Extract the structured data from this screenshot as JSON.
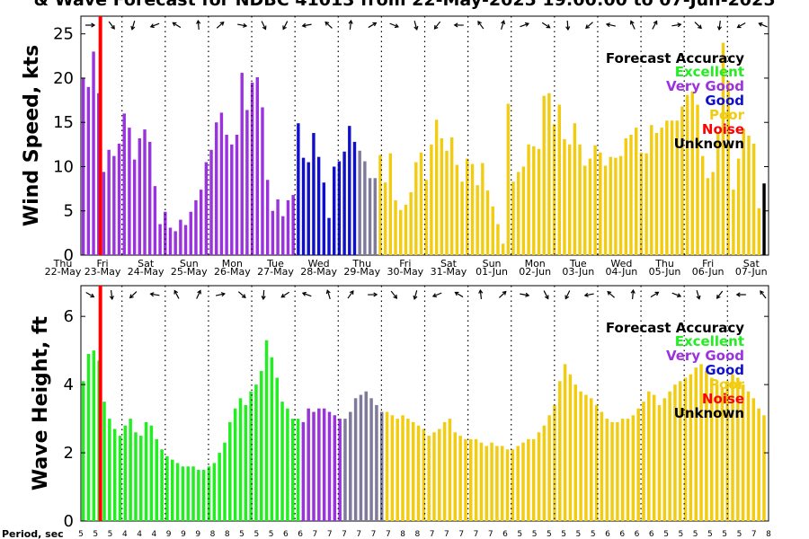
{
  "title": "& Wave Forecast for NDBC 41013 from 22-May-2025 19:00:00 to 07-Jun-2025",
  "colors": {
    "Excellent": "#22ee22",
    "Very Good": "#9a33dd",
    "Good": "#1010cc",
    "Poor": "#f2cc10",
    "Noise": "#ff0000",
    "Unknown": "#000000",
    "transition": "#807a9a"
  },
  "legend": {
    "title": "Forecast Accuracy",
    "entries": [
      "Excellent",
      "Very Good",
      "Good",
      "Poor",
      "Noise",
      "Unknown"
    ]
  },
  "day_labels": [
    {
      "dow": "Thu",
      "date": "22-May"
    },
    {
      "dow": "Fri",
      "date": "23-May"
    },
    {
      "dow": "Sat",
      "date": "24-May"
    },
    {
      "dow": "Sun",
      "date": "25-May"
    },
    {
      "dow": "Mon",
      "date": "26-May"
    },
    {
      "dow": "Tue",
      "date": "27-May"
    },
    {
      "dow": "Wed",
      "date": "28-May"
    },
    {
      "dow": "Thu",
      "date": "29-May"
    },
    {
      "dow": "Fri",
      "date": "30-May"
    },
    {
      "dow": "Sat",
      "date": "31-May"
    },
    {
      "dow": "Sun",
      "date": "01-Jun"
    },
    {
      "dow": "Mon",
      "date": "02-Jun"
    },
    {
      "dow": "Tue",
      "date": "03-Jun"
    },
    {
      "dow": "Wed",
      "date": "04-Jun"
    },
    {
      "dow": "Thu",
      "date": "05-Jun"
    },
    {
      "dow": "Fri",
      "date": "06-Jun"
    },
    {
      "dow": "Sat",
      "date": "07-Jun"
    }
  ],
  "period_label": "Period, sec",
  "periods": [
    5,
    5,
    5,
    4,
    4,
    4,
    9,
    9,
    9,
    8,
    8,
    5,
    5,
    5,
    6,
    6,
    7,
    7,
    7,
    7,
    7,
    7,
    8,
    8,
    7,
    7,
    7,
    7,
    7,
    6,
    5,
    5,
    5,
    5,
    5,
    5,
    6,
    6,
    6,
    6,
    5,
    5,
    5,
    5,
    5,
    5,
    7,
    8
  ],
  "chart_data": [
    {
      "type": "bar",
      "ylabel": "Wind Speed, kts",
      "ylim": [
        0,
        27
      ],
      "yticks": [
        0,
        5,
        10,
        15,
        20,
        25
      ],
      "xlim": [
        0,
        15.9
      ],
      "noise_line_x": 0.45,
      "values": [
        20,
        19,
        23,
        18.3,
        9.4,
        11.9,
        11.2,
        12.6,
        16,
        14.4,
        10.8,
        13.2,
        14.2,
        12.8,
        7.8,
        3.5,
        4.9,
        3.1,
        2.7,
        4,
        3.4,
        4.9,
        6.2,
        7.4,
        10.5,
        11.9,
        15,
        16.1,
        13.6,
        12.5,
        13.6,
        20.6,
        16.4,
        19.5,
        20.1,
        16.7,
        8.5,
        5,
        6.3,
        4.4,
        6.2,
        6.8,
        14.9,
        11,
        10.5,
        13.8,
        11.1,
        8.2,
        4.2,
        10,
        10.6,
        11.7,
        14.6,
        12.8,
        11.8,
        10.6,
        8.7,
        8.7,
        11.3,
        8.2,
        11.5,
        6.2,
        5.1,
        5.7,
        7.1,
        10.5,
        11.6,
        8.5,
        12.5,
        15.3,
        13.2,
        11.8,
        13.3,
        10.2,
        8.3,
        10.9,
        10.3,
        7.9,
        10.4,
        7.3,
        5.5,
        3.5,
        1.3,
        17.1,
        8.3,
        9.4,
        10,
        12.5,
        12.3,
        12,
        18,
        18.3,
        14.8,
        17,
        13.1,
        12.5,
        14.9,
        12.5,
        10.1,
        10.9,
        12.4,
        11.6,
        10.1,
        11.1,
        11,
        11.2,
        13.2,
        13.6,
        14.4,
        11.6,
        11.5,
        14.7,
        13.8,
        14.4,
        15.2,
        15.2,
        15.2,
        16.8,
        18.1,
        18.5,
        17,
        11.2,
        8.7,
        9.4,
        13.8,
        24,
        19.7,
        7.4,
        10.9,
        14.3,
        13.5,
        12.6,
        5.3,
        8.1
      ],
      "segments": [
        {
          "from": 0,
          "to": 42,
          "category": "Very Good"
        },
        {
          "from": 42,
          "to": 54,
          "category": "Good"
        },
        {
          "from": 54,
          "to": 58,
          "category": "transition"
        },
        {
          "from": 58,
          "to": 133,
          "category": "Poor"
        }
      ]
    },
    {
      "type": "bar",
      "ylabel": "Wave Height, ft",
      "ylim": [
        0,
        6.9
      ],
      "yticks": [
        0,
        2,
        4,
        6
      ],
      "xlim": [
        0,
        15.9
      ],
      "noise_line_x": 0.45,
      "values": [
        4.1,
        4.9,
        5,
        4.7,
        3.5,
        3,
        2.7,
        2.5,
        2.8,
        3,
        2.6,
        2.5,
        2.9,
        2.8,
        2.4,
        2.1,
        1.9,
        1.8,
        1.7,
        1.6,
        1.6,
        1.6,
        1.5,
        1.5,
        1.6,
        1.7,
        2,
        2.3,
        2.9,
        3.3,
        3.6,
        3.4,
        3.8,
        4,
        4.4,
        5.3,
        4.8,
        4.2,
        3.5,
        3.3,
        3,
        3,
        2.9,
        3.3,
        3.2,
        3.3,
        3.3,
        3.2,
        3.1,
        3,
        3,
        3.2,
        3.6,
        3.7,
        3.8,
        3.6,
        3.4,
        3.2,
        3.2,
        3.1,
        3,
        3.1,
        3,
        2.9,
        2.8,
        2.7,
        2.5,
        2.6,
        2.7,
        2.9,
        3,
        2.6,
        2.5,
        2.4,
        2.4,
        2.4,
        2.3,
        2.2,
        2.3,
        2.2,
        2.2,
        2.1,
        2.1,
        2.2,
        2.3,
        2.4,
        2.4,
        2.6,
        2.8,
        3.1,
        3.4,
        4.1,
        4.6,
        4.3,
        4,
        3.8,
        3.7,
        3.6,
        3.4,
        3.2,
        3,
        2.9,
        2.9,
        3,
        3,
        3.1,
        3.3,
        3.5,
        3.8,
        3.7,
        3.4,
        3.6,
        3.8,
        4,
        4.1,
        4.2,
        4.3,
        4.5,
        4.6,
        4.4,
        4.2,
        4,
        3.9,
        4.1,
        4.3,
        4.2,
        4,
        3.8,
        3.6,
        3.3,
        3.1
      ],
      "segments": [
        {
          "from": 0,
          "to": 42,
          "category": "Excellent"
        },
        {
          "from": 42,
          "to": 50,
          "category": "Very Good"
        },
        {
          "from": 50,
          "to": 58,
          "category": "transition"
        },
        {
          "from": 58,
          "to": 133,
          "category": "Poor"
        }
      ]
    }
  ]
}
